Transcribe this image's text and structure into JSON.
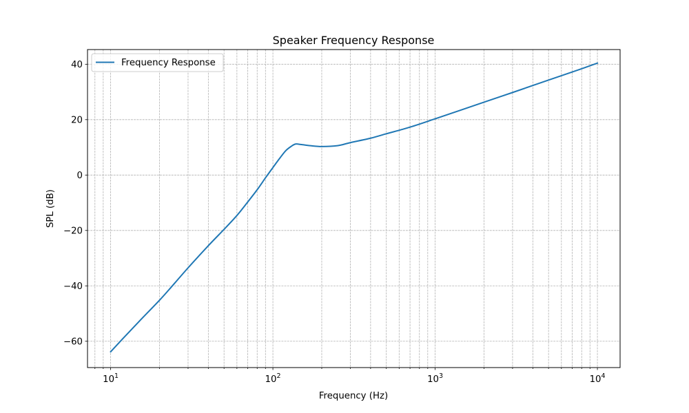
{
  "chart_data": {
    "type": "line",
    "title": "Speaker Frequency Response",
    "xlabel": "Frequency (Hz)",
    "ylabel": "SPL (dB)",
    "xscale": "log",
    "xlim": [
      7.2,
      13800
    ],
    "ylim": [
      -69.5,
      45.3
    ],
    "grid": true,
    "legend_position": "upper left",
    "x_ticks": [
      {
        "value": 10,
        "base": "10",
        "exp": "1"
      },
      {
        "value": 100,
        "base": "10",
        "exp": "2"
      },
      {
        "value": 1000,
        "base": "10",
        "exp": "3"
      },
      {
        "value": 10000,
        "base": "10",
        "exp": "4"
      }
    ],
    "y_ticks": [
      40,
      20,
      0,
      -20,
      -40,
      -60
    ],
    "y_tick_labels": [
      "40",
      "20",
      "0",
      "−20",
      "−40",
      "−60"
    ],
    "series": [
      {
        "name": "Frequency Response",
        "color": "#1f77b4",
        "x": [
          10,
          12,
          15,
          20,
          24,
          30,
          40,
          50,
          60,
          70,
          80,
          90,
          100,
          110,
          120,
          130,
          138,
          150,
          170,
          200,
          250,
          300,
          400,
          500,
          700,
          1000,
          2000,
          3000,
          5000,
          7000,
          10000
        ],
        "y": [
          -63.8,
          -58.8,
          -52.8,
          -45.2,
          -40.0,
          -33.5,
          -25.5,
          -19.6,
          -14.6,
          -9.7,
          -5.3,
          -1.0,
          2.7,
          6.0,
          8.8,
          10.4,
          11.2,
          11.0,
          10.6,
          10.3,
          10.6,
          11.7,
          13.3,
          14.9,
          17.3,
          20.3,
          26.3,
          29.8,
          34.3,
          37.2,
          40.4
        ]
      }
    ]
  }
}
